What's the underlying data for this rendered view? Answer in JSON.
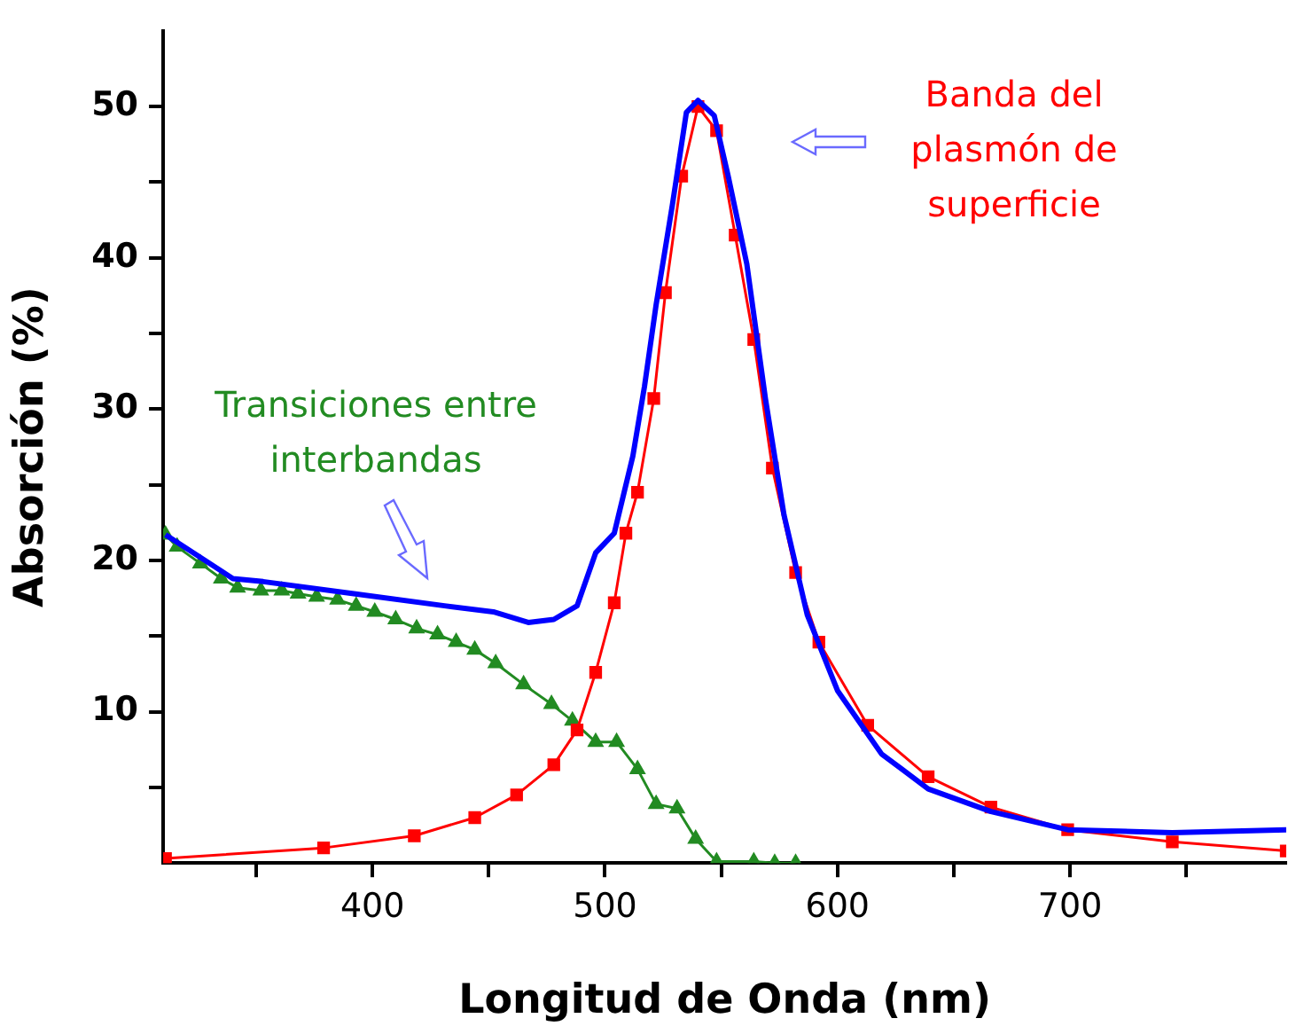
{
  "chart_data": {
    "type": "line",
    "xlabel": "Longitud de Onda (nm)",
    "ylabel": "Absorción (%)",
    "xlim": [
      310,
      793
    ],
    "ylim": [
      0,
      55
    ],
    "xticks": [
      {
        "value": 350,
        "label": null
      },
      400,
      {
        "value": 450,
        "label": null
      },
      500,
      {
        "value": 550,
        "label": null
      },
      600,
      {
        "value": 650,
        "label": null
      },
      700,
      {
        "value": 750,
        "label": null
      }
    ],
    "yticks": [
      {
        "value": 5,
        "label": null
      },
      10,
      {
        "value": 15,
        "label": null
      },
      20,
      {
        "value": 25,
        "label": null
      },
      30,
      {
        "value": 35,
        "label": null
      },
      40,
      {
        "value": 45,
        "label": null
      },
      50
    ],
    "grid": false,
    "legend": false,
    "series": [
      {
        "color": "#0000ff",
        "marker": "none",
        "x": [
          311,
          340,
          353,
          392,
          431,
          452,
          467,
          478,
          488,
          496,
          504,
          512,
          517,
          522,
          529,
          535,
          540,
          547,
          553,
          561,
          569,
          577,
          587,
          600,
          619,
          639,
          666,
          699,
          744,
          793
        ],
        "values": [
          21.7,
          18.8,
          18.6,
          17.8,
          17.0,
          16.6,
          15.9,
          16.1,
          17.0,
          20.5,
          21.8,
          26.9,
          31.5,
          36.9,
          43.5,
          49.6,
          50.4,
          49.4,
          45.4,
          39.6,
          30.7,
          23.0,
          16.4,
          11.4,
          7.2,
          4.9,
          3.4,
          2.2,
          2.0,
          2.2
        ]
      },
      {
        "color": "#ff0000",
        "marker": "square",
        "x": [
          311,
          379,
          418,
          444,
          462,
          478,
          488,
          496,
          504,
          509,
          514,
          521,
          526,
          533,
          540,
          548,
          556,
          564,
          572,
          582,
          592,
          613,
          639,
          666,
          699,
          744,
          793
        ],
        "values": [
          0.3,
          1.0,
          1.8,
          3.0,
          4.5,
          6.5,
          8.8,
          12.6,
          17.2,
          21.8,
          24.5,
          30.7,
          37.7,
          45.4,
          50.0,
          48.4,
          41.5,
          34.6,
          26.1,
          19.2,
          14.6,
          9.1,
          5.7,
          3.7,
          2.2,
          1.4,
          0.8
        ]
      },
      {
        "color": "#228b22",
        "marker": "triangle",
        "x": [
          311,
          316,
          326,
          335,
          342,
          352,
          361,
          368,
          376,
          385,
          393,
          401,
          410,
          419,
          428,
          436,
          444,
          453,
          465,
          477,
          486,
          496,
          505,
          514,
          522,
          531,
          539,
          548,
          564,
          573,
          582
        ],
        "values": [
          21.7,
          20.9,
          19.8,
          18.8,
          18.2,
          18.0,
          18.0,
          17.8,
          17.6,
          17.4,
          17.0,
          16.6,
          16.1,
          15.5,
          15.1,
          14.6,
          14.1,
          13.2,
          11.8,
          10.5,
          9.4,
          8.0,
          8.0,
          6.2,
          3.9,
          3.6,
          1.6,
          0.1,
          0.1,
          0,
          0
        ]
      }
    ],
    "annotations": [
      "Banda del plasmón de superficie",
      "Transiciones entre interbandas"
    ]
  }
}
